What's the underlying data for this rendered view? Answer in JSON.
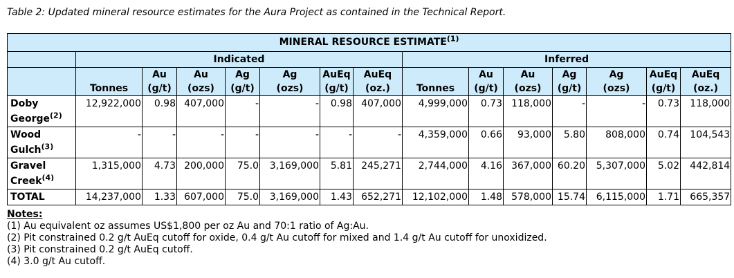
{
  "caption": "Table 2: Updated mineral resource estimates for the Aura Project as contained in the Technical Report.",
  "table": {
    "title": "MINERAL RESOURCE ESTIMATE",
    "title_sup": "(1)",
    "groups": [
      "Indicated",
      "Inferred"
    ],
    "columns": [
      [
        "",
        "Tonnes"
      ],
      [
        "Au",
        "(g/t)"
      ],
      [
        "Au",
        "(ozs)"
      ],
      [
        "Ag",
        "(g/t)"
      ],
      [
        "Ag",
        "(ozs)"
      ],
      [
        "AuEq",
        "(g/t)"
      ],
      [
        "AuEq",
        "(oz.)"
      ]
    ],
    "rows": [
      {
        "label": "Doby George",
        "sup": "(2)",
        "values": [
          "12,922,000",
          "0.98",
          "407,000",
          "-",
          "-",
          "0.98",
          "407,000",
          "4,999,000",
          "0.73",
          "118,000",
          "-",
          "-",
          "0.73",
          "118,000"
        ]
      },
      {
        "label": "Wood Gulch",
        "sup": "(3)",
        "values": [
          "-",
          "-",
          "-",
          "-",
          "-",
          "-",
          "-",
          "4,359,000",
          "0.66",
          "93,000",
          "5.80",
          "808,000",
          "0.74",
          "104,543"
        ]
      },
      {
        "label": "Gravel Creek",
        "sup": "(4)",
        "values": [
          "1,315,000",
          "4.73",
          "200,000",
          "75.0",
          "3,169,000",
          "5.81",
          "245,271",
          "2,744,000",
          "4.16",
          "367,000",
          "60.20",
          "5,307,000",
          "5.02",
          "442,814"
        ]
      },
      {
        "label": "TOTAL",
        "sup": "",
        "values": [
          "14,237,000",
          "1.33",
          "607,000",
          "75.0",
          "3,169,000",
          "1.43",
          "652,271",
          "12,102,000",
          "1.48",
          "578,000",
          "15.74",
          "6,115,000",
          "1.71",
          "665,357"
        ]
      }
    ]
  },
  "notes": {
    "heading": "Notes:",
    "items": [
      "(1) Au equivalent oz assumes US$1,800 per oz Au and 70:1 ratio of Ag:Au.",
      "(2) Pit constrained 0.2 g/t AuEq cutoff for oxide, 0.4 g/t Au cutoff for mixed and 1.4 g/t Au cutoff for unoxidized.",
      "(3) Pit constrained 0.2 g/t AuEq cutoff.",
      "(4) 3.0 g/t Au cutoff."
    ]
  },
  "colors": {
    "header_bg": "#cdebfb"
  }
}
